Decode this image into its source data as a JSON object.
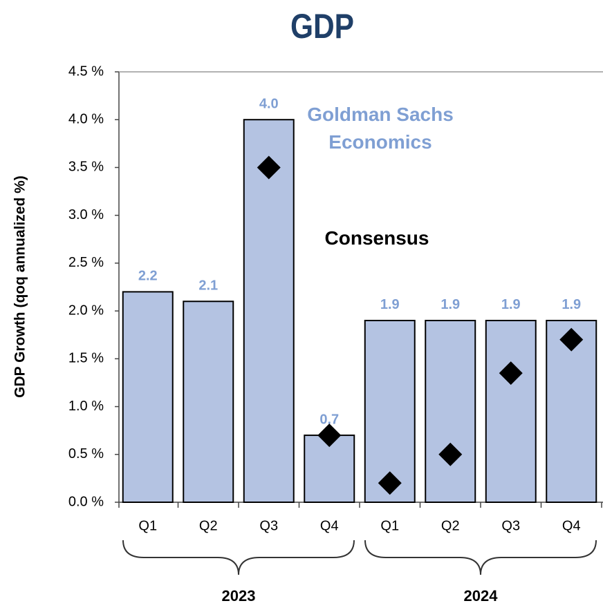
{
  "chart_data": {
    "type": "bar",
    "title": "GDP",
    "y_label": "GDP Growth (qoq annualized %)",
    "categories": [
      "Q1",
      "Q2",
      "Q3",
      "Q4",
      "Q1",
      "Q2",
      "Q3",
      "Q4"
    ],
    "groups": [
      "2023",
      "2024"
    ],
    "series": [
      {
        "name": "Goldman Sachs Economics",
        "type": "bar",
        "color": "#b4c3e2",
        "label_color": "#7f9fd3",
        "values": [
          2.2,
          2.1,
          4.0,
          0.7,
          1.9,
          1.9,
          1.9,
          1.9
        ],
        "value_labels": [
          "2.2",
          "2.1",
          "4.0",
          "0.7",
          "1.9",
          "1.9",
          "1.9",
          "1.9"
        ]
      },
      {
        "name": "Consensus",
        "type": "scatter",
        "color": "#000000",
        "values": [
          null,
          null,
          3.5,
          0.7,
          0.2,
          0.5,
          1.35,
          1.7
        ]
      }
    ],
    "ylim": [
      0,
      4.5
    ],
    "yticks": [
      {
        "value": 0,
        "label": "0.0 %"
      },
      {
        "value": 0.5,
        "label": "0.5 %"
      },
      {
        "value": 1.0,
        "label": "1.0 %"
      },
      {
        "value": 1.5,
        "label": "1.5 %"
      },
      {
        "value": 2.0,
        "label": "2.0 %"
      },
      {
        "value": 2.5,
        "label": "2.5 %"
      },
      {
        "value": 3.0,
        "label": "3.0 %"
      },
      {
        "value": 3.5,
        "label": "3.5 %"
      },
      {
        "value": 4.0,
        "label": "4.0 %"
      },
      {
        "value": 4.5,
        "label": "4.5 %"
      }
    ],
    "grid": false
  }
}
